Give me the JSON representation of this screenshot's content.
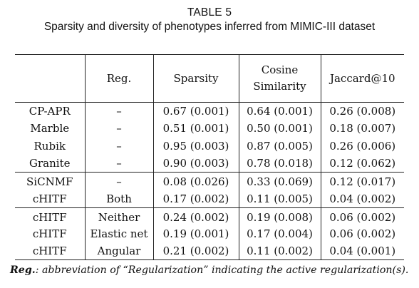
{
  "caption": {
    "label": "TABLE 5",
    "text": "Sparsity and diversity of phenotypes inferred from MIMIC-III dataset"
  },
  "headers": {
    "method": "",
    "reg": "Reg.",
    "sparsity": "Sparsity",
    "cosine_line1": "Cosine",
    "cosine_line2": "Similarity",
    "jaccard": "Jaccard@10"
  },
  "rows": [
    {
      "method": "CP-APR",
      "reg": "–",
      "sparsity": "0.67 (0.001)",
      "cosine": "0.64 (0.001)",
      "jaccard": "0.26 (0.008)"
    },
    {
      "method": "Marble",
      "reg": "–",
      "sparsity": "0.51 (0.001)",
      "cosine": "0.50 (0.001)",
      "jaccard": "0.18 (0.007)"
    },
    {
      "method": "Rubik",
      "reg": "–",
      "sparsity": "0.95 (0.003)",
      "cosine": "0.87 (0.005)",
      "jaccard": "0.26 (0.006)"
    },
    {
      "method": "Granite",
      "reg": "–",
      "sparsity": "0.90 (0.003)",
      "cosine": "0.78 (0.018)",
      "jaccard": "0.12 (0.062)"
    },
    {
      "method": "SiCNMF",
      "reg": "–",
      "sparsity": "0.08 (0.026)",
      "cosine": "0.33 (0.069)",
      "jaccard": "0.12 (0.017)"
    },
    {
      "method": "cHITF",
      "reg": "Both",
      "sparsity": "0.17 (0.002)",
      "cosine": "0.11 (0.005)",
      "jaccard": "0.04 (0.002)"
    },
    {
      "method": "cHITF",
      "reg": "Neither",
      "sparsity": "0.24 (0.002)",
      "cosine": "0.19 (0.008)",
      "jaccard": "0.06 (0.002)"
    },
    {
      "method": "cHITF",
      "reg": "Elastic net",
      "sparsity": "0.19 (0.001)",
      "cosine": "0.17 (0.004)",
      "jaccard": "0.06 (0.002)"
    },
    {
      "method": "cHITF",
      "reg": "Angular",
      "sparsity": "0.21 (0.002)",
      "cosine": "0.11 (0.002)",
      "jaccard": "0.04 (0.001)"
    }
  ],
  "footnote": {
    "term": "Reg.",
    "text": ": abbreviation of “Regularization” indicating the active regularization(s)."
  }
}
